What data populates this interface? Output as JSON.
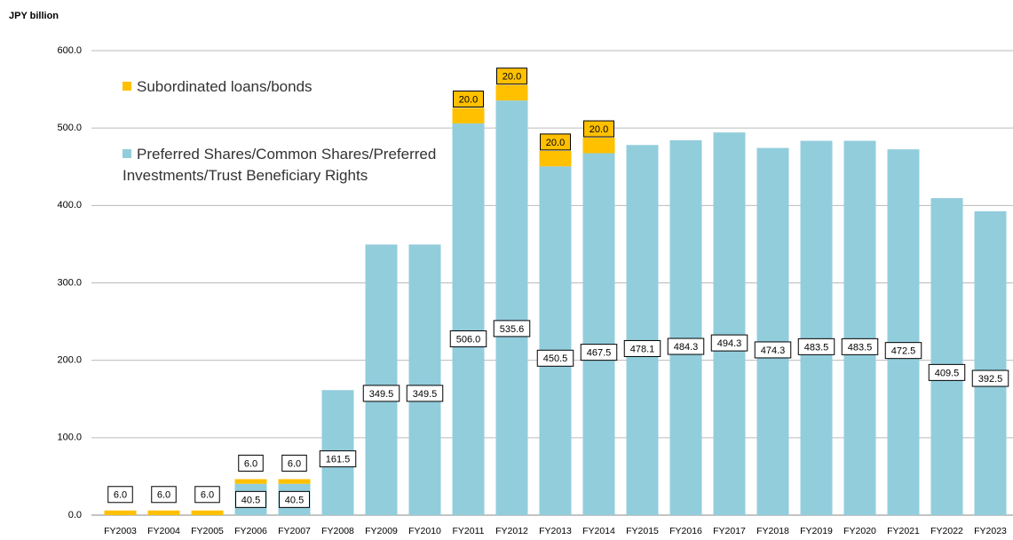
{
  "chart_data": {
    "type": "bar",
    "stacked": true,
    "y_label": "JPY billion",
    "categories": [
      "FY2003",
      "FY2004",
      "FY2005",
      "FY2006",
      "FY2007",
      "FY2008",
      "FY2009",
      "FY2010",
      "FY2011",
      "FY2012",
      "FY2013",
      "FY2014",
      "FY2015",
      "FY2016",
      "FY2017",
      "FY2018",
      "FY2019",
      "FY2020",
      "FY2021",
      "FY2022",
      "FY2023"
    ],
    "series": [
      {
        "name": "Preferred Shares/Common Shares/Preferred Investments/Trust Beneficiary Rights",
        "color": "#92cddc",
        "values": [
          null,
          null,
          null,
          40.5,
          40.5,
          161.5,
          349.5,
          349.5,
          506,
          535.6,
          450.5,
          467.5,
          478.1,
          484.3,
          494.3,
          474.3,
          483.5,
          483.5,
          472.5,
          409.5,
          392.5
        ],
        "value_labels": [
          null,
          null,
          null,
          "40.5",
          "40.5",
          "161.5",
          "349.5",
          "349.5",
          "506.0",
          "535.6",
          "450.5",
          "467.5",
          "478.1",
          "484.3",
          "494.3",
          "474.3",
          "483.5",
          "483.5",
          "472.5",
          "409.5",
          "392.5"
        ]
      },
      {
        "name": "Subordinated loans/bonds",
        "color": "#ffc000",
        "values": [
          6,
          6,
          6,
          6,
          6,
          null,
          null,
          null,
          20,
          20,
          20,
          20,
          null,
          null,
          null,
          null,
          null,
          null,
          null,
          null,
          null
        ],
        "value_labels": [
          "6.0",
          "6.0",
          "6.0",
          "6.0",
          "6.0",
          null,
          null,
          null,
          "20.0",
          "20.0",
          "20.0",
          "20.0",
          null,
          null,
          null,
          null,
          null,
          null,
          null,
          null,
          null
        ]
      }
    ],
    "ylim": [
      0,
      600
    ],
    "yticks": [
      {
        "value": 0,
        "label": "0.0"
      },
      {
        "value": 100,
        "label": "100.0"
      },
      {
        "value": 200,
        "label": "200.0"
      },
      {
        "value": 300,
        "label": "300.0"
      },
      {
        "value": 400,
        "label": "400.0"
      },
      {
        "value": 500,
        "label": "500.0"
      },
      {
        "value": 600,
        "label": "600.0"
      }
    ],
    "grid": true
  }
}
